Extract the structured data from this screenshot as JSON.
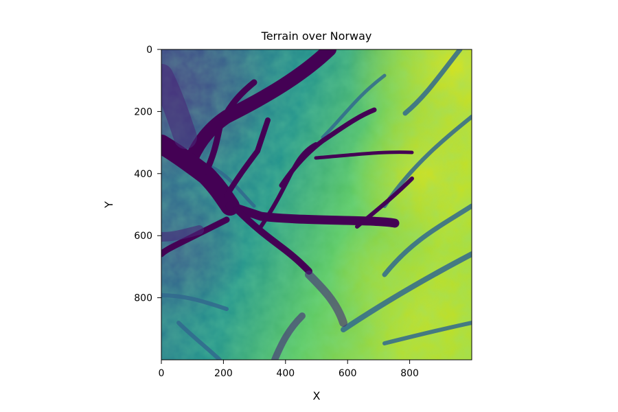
{
  "chart_data": {
    "type": "heatmap",
    "title": "Terrain over Norway",
    "xlabel": "X",
    "ylabel": "Y",
    "xlim": [
      0,
      1000
    ],
    "ylim": [
      1000,
      0
    ],
    "y_axis_inverted": true,
    "x_ticks": [
      0,
      200,
      400,
      600,
      800
    ],
    "y_ticks": [
      0,
      200,
      400,
      600,
      800
    ],
    "x_tick_labels": [
      "0",
      "200",
      "400",
      "600",
      "800"
    ],
    "y_tick_labels": [
      "0",
      "200",
      "400",
      "600",
      "800"
    ],
    "colormap": "viridis",
    "grid": false,
    "colorbar": false
  }
}
